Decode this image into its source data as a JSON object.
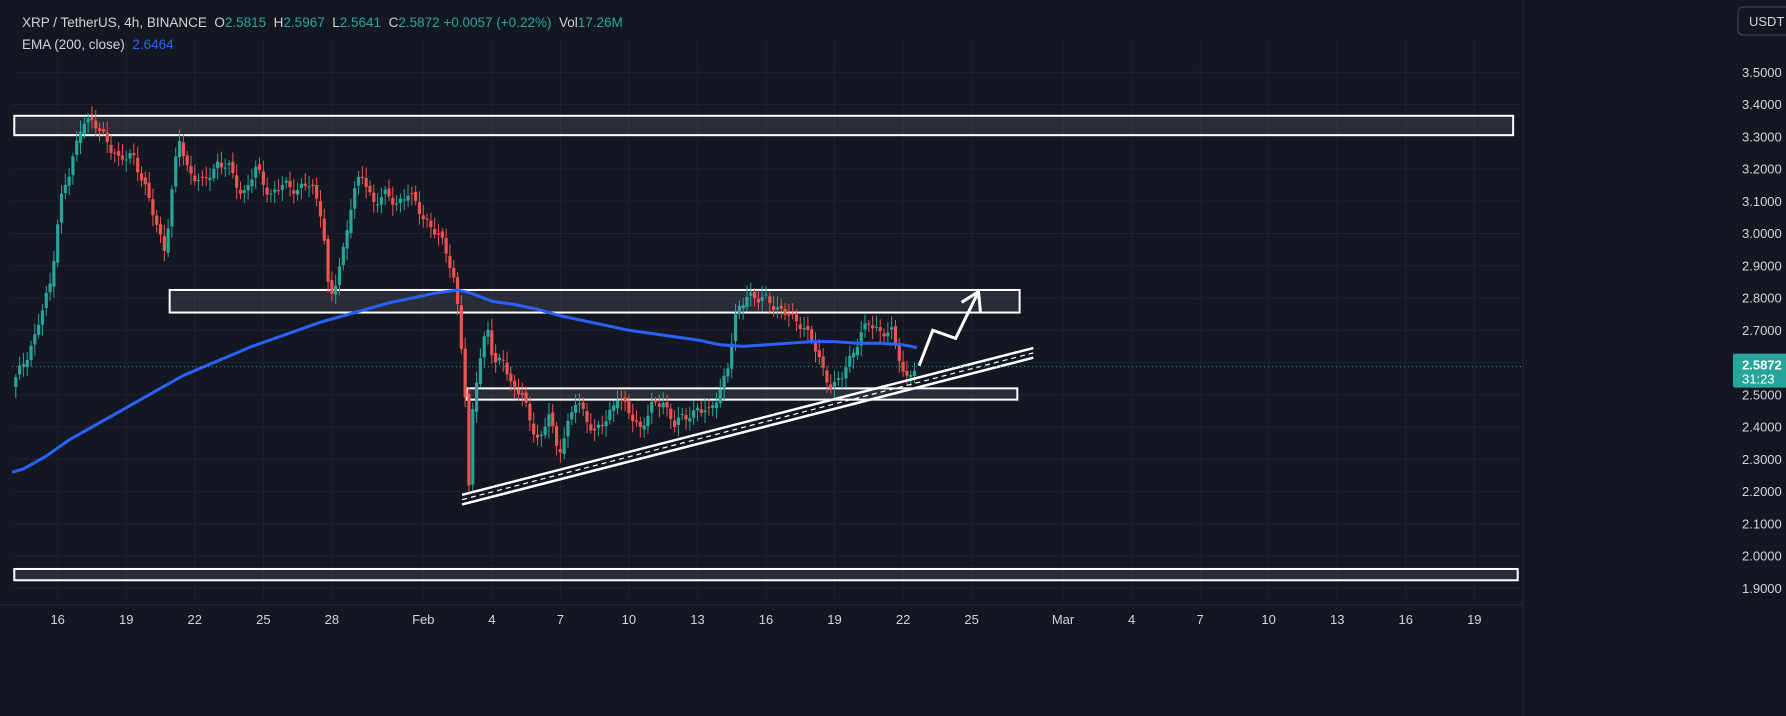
{
  "legend": {
    "symbol": "XRP / TetherUS, 4h, BINANCE",
    "o_label": "O",
    "o_value": "2.5815",
    "h_label": "H",
    "h_value": "2.5967",
    "l_label": "L",
    "l_value": "2.5641",
    "c_label": "C",
    "c_value": "2.5872",
    "change": "+0.0057 (+0.22%)",
    "vol_label": "Vol",
    "vol_value": "17.26M",
    "ema_label": "EMA (200, close)",
    "ema_value": "2.6464"
  },
  "currency_button": "USDT",
  "price_badge": {
    "price": "2.5872",
    "countdown": "31:23"
  },
  "colors": {
    "background": "#131722",
    "grid": "#1e222d",
    "up": "#26a69a",
    "down": "#ef5350",
    "ema": "#2962ff",
    "drawing": "#ffffff",
    "text": "#d1d4dc"
  },
  "chart_data": {
    "type": "candlestick",
    "title": "XRP / TetherUS, 4h, BINANCE",
    "ylim": [
      1.87,
      3.6
    ],
    "y_ticks": [
      "3.5000",
      "3.4000",
      "3.3000",
      "3.2000",
      "3.1000",
      "3.0000",
      "2.9000",
      "2.8000",
      "2.7000",
      "2.6000",
      "2.5000",
      "2.4000",
      "2.3000",
      "2.2000",
      "2.1000",
      "2.0000",
      "1.9000"
    ],
    "y_tick_values": [
      3.5,
      3.4,
      3.3,
      3.2,
      3.1,
      3.0,
      2.9,
      2.8,
      2.7,
      2.6,
      2.5,
      2.4,
      2.3,
      2.2,
      2.1,
      2.0,
      1.9
    ],
    "x_ticks": [
      "16",
      "19",
      "22",
      "25",
      "28",
      "Feb",
      "4",
      "7",
      "10",
      "13",
      "16",
      "19",
      "22",
      "25",
      "Mar",
      "4",
      "7",
      "10",
      "13",
      "16",
      "19"
    ],
    "x_tick_days": [
      15.5,
      18.5,
      21.5,
      24.5,
      27.5,
      31.5,
      34.5,
      37.5,
      40.5,
      43.5,
      46.5,
      49.5,
      52.5,
      55.5,
      59.5,
      62.5,
      65.5,
      68.5,
      71.5,
      74.5,
      77.5
    ],
    "x_range_days": [
      13.5,
      79.5
    ],
    "last_day": 53.1,
    "price_path": [
      [
        13.5,
        2.52
      ],
      [
        14.5,
        2.68
      ],
      [
        15.2,
        2.85
      ],
      [
        15.6,
        3.1
      ],
      [
        16.0,
        3.18
      ],
      [
        16.6,
        3.36
      ],
      [
        17.0,
        3.34
      ],
      [
        17.6,
        3.3
      ],
      [
        18.2,
        3.22
      ],
      [
        18.8,
        3.25
      ],
      [
        19.5,
        3.1
      ],
      [
        20.2,
        2.95
      ],
      [
        20.8,
        3.3
      ],
      [
        21.2,
        3.2
      ],
      [
        21.8,
        3.15
      ],
      [
        22.5,
        3.22
      ],
      [
        23.0,
        3.2
      ],
      [
        23.6,
        3.12
      ],
      [
        24.2,
        3.2
      ],
      [
        24.8,
        3.12
      ],
      [
        25.4,
        3.15
      ],
      [
        26.0,
        3.14
      ],
      [
        26.6,
        3.15
      ],
      [
        27.1,
        3.05
      ],
      [
        27.4,
        2.78
      ],
      [
        27.7,
        2.85
      ],
      [
        28.0,
        2.95
      ],
      [
        28.4,
        3.12
      ],
      [
        28.8,
        3.18
      ],
      [
        29.3,
        3.1
      ],
      [
        29.8,
        3.12
      ],
      [
        30.3,
        3.09
      ],
      [
        30.8,
        3.13
      ],
      [
        31.4,
        3.06
      ],
      [
        31.9,
        3.02
      ],
      [
        32.4,
        2.96
      ],
      [
        32.8,
        2.88
      ],
      [
        33.0,
        2.78
      ],
      [
        33.3,
        2.55
      ],
      [
        33.5,
        2.2
      ],
      [
        33.7,
        2.5
      ],
      [
        34.0,
        2.62
      ],
      [
        34.3,
        2.72
      ],
      [
        34.6,
        2.58
      ],
      [
        35.0,
        2.62
      ],
      [
        35.4,
        2.52
      ],
      [
        35.8,
        2.5
      ],
      [
        36.2,
        2.42
      ],
      [
        36.6,
        2.35
      ],
      [
        37.0,
        2.44
      ],
      [
        37.4,
        2.32
      ],
      [
        37.8,
        2.4
      ],
      [
        38.2,
        2.48
      ],
      [
        38.6,
        2.44
      ],
      [
        39.0,
        2.38
      ],
      [
        39.5,
        2.42
      ],
      [
        40.0,
        2.5
      ],
      [
        40.5,
        2.44
      ],
      [
        41.0,
        2.4
      ],
      [
        41.5,
        2.46
      ],
      [
        42.0,
        2.48
      ],
      [
        42.5,
        2.41
      ],
      [
        43.0,
        2.43
      ],
      [
        43.5,
        2.46
      ],
      [
        44.0,
        2.44
      ],
      [
        44.5,
        2.52
      ],
      [
        44.9,
        2.6
      ],
      [
        45.1,
        2.72
      ],
      [
        45.4,
        2.78
      ],
      [
        45.7,
        2.82
      ],
      [
        46.1,
        2.79
      ],
      [
        46.6,
        2.8
      ],
      [
        47.1,
        2.76
      ],
      [
        47.6,
        2.74
      ],
      [
        48.1,
        2.72
      ],
      [
        48.6,
        2.65
      ],
      [
        49.0,
        2.58
      ],
      [
        49.4,
        2.52
      ],
      [
        49.8,
        2.55
      ],
      [
        50.2,
        2.62
      ],
      [
        50.6,
        2.68
      ],
      [
        51.0,
        2.72
      ],
      [
        51.5,
        2.7
      ],
      [
        52.0,
        2.69
      ],
      [
        52.4,
        2.6
      ],
      [
        52.6,
        2.55
      ],
      [
        52.8,
        2.57
      ],
      [
        53.1,
        2.5872
      ]
    ],
    "ema_200": [
      [
        13.5,
        2.26
      ],
      [
        14.0,
        2.27
      ],
      [
        15.0,
        2.31
      ],
      [
        16.0,
        2.36
      ],
      [
        17.0,
        2.4
      ],
      [
        18.0,
        2.44
      ],
      [
        19.0,
        2.48
      ],
      [
        20.0,
        2.52
      ],
      [
        21.0,
        2.56
      ],
      [
        22.0,
        2.59
      ],
      [
        23.0,
        2.62
      ],
      [
        24.0,
        2.65
      ],
      [
        25.0,
        2.675
      ],
      [
        26.0,
        2.7
      ],
      [
        27.0,
        2.725
      ],
      [
        28.0,
        2.745
      ],
      [
        29.0,
        2.765
      ],
      [
        30.0,
        2.785
      ],
      [
        31.0,
        2.8
      ],
      [
        32.0,
        2.815
      ],
      [
        33.0,
        2.825
      ],
      [
        33.6,
        2.815
      ],
      [
        34.5,
        2.79
      ],
      [
        35.5,
        2.78
      ],
      [
        36.5,
        2.765
      ],
      [
        37.5,
        2.745
      ],
      [
        38.5,
        2.73
      ],
      [
        39.5,
        2.715
      ],
      [
        40.5,
        2.7
      ],
      [
        41.5,
        2.69
      ],
      [
        42.5,
        2.68
      ],
      [
        43.5,
        2.67
      ],
      [
        44.5,
        2.655
      ],
      [
        45.5,
        2.65
      ],
      [
        46.5,
        2.655
      ],
      [
        47.5,
        2.66
      ],
      [
        48.5,
        2.665
      ],
      [
        49.5,
        2.665
      ],
      [
        50.5,
        2.66
      ],
      [
        51.5,
        2.66
      ],
      [
        52.5,
        2.655
      ],
      [
        53.1,
        2.6464
      ]
    ],
    "zones": [
      {
        "x1": 13.6,
        "x2": 79.2,
        "y_top": 3.365,
        "y_bottom": 3.305
      },
      {
        "x1": 20.4,
        "x2": 57.6,
        "y_top": 2.825,
        "y_bottom": 2.755
      },
      {
        "x1": 33.4,
        "x2": 57.5,
        "y_top": 2.52,
        "y_bottom": 2.485
      },
      {
        "x1": 13.6,
        "x2": 79.4,
        "y_top": 1.96,
        "y_bottom": 1.925
      }
    ],
    "trendlines": [
      {
        "x1": 33.2,
        "y1": 2.19,
        "x2": 58.2,
        "y2": 2.645
      },
      {
        "x1": 33.2,
        "y1": 2.16,
        "x2": 58.2,
        "y2": 2.615
      },
      {
        "x1": 33.2,
        "y1": 2.175,
        "x2": 58.2,
        "y2": 2.63,
        "dashed": true
      }
    ],
    "projection_arrow": [
      [
        53.2,
        2.59
      ],
      [
        53.8,
        2.7
      ],
      [
        54.8,
        2.675
      ],
      [
        55.8,
        2.82
      ]
    ]
  }
}
